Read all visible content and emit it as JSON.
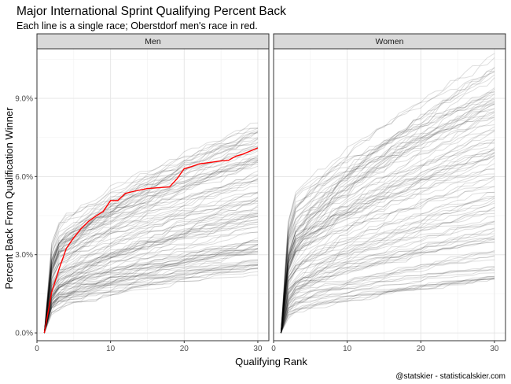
{
  "chart_data": {
    "type": "line",
    "title": "Major International Sprint Qualifying Percent Back",
    "subtitle": "Each line is a single race; Oberstdorf men's race in red.",
    "xlabel": "Qualifying Rank",
    "ylabel": "Percent Back From Qualification Winner",
    "caption": "@statskier - statisticalskier.com",
    "xlim": [
      0,
      31.5
    ],
    "ylim": [
      -0.3,
      10.9
    ],
    "x_ticks": [
      0,
      10,
      20,
      30
    ],
    "x_tick_labels": [
      "0",
      "10",
      "20",
      "30"
    ],
    "y_ticks": [
      0,
      3,
      6,
      9
    ],
    "y_tick_labels": [
      "0.0%",
      "3.0%",
      "6.0%",
      "9.0%"
    ],
    "grid": true,
    "panels": [
      {
        "label": "Men",
        "background_races": 110,
        "background_color": "#000000",
        "background_final_range": [
          2.2,
          8.1
        ],
        "highlight": {
          "name": "Oberstdorf men's race",
          "color": "#ff0000",
          "x": [
            1,
            2,
            3,
            4,
            5,
            6,
            7,
            8,
            9,
            10,
            11,
            12,
            13,
            14,
            15,
            16,
            17,
            18,
            19,
            20,
            21,
            22,
            23,
            24,
            25,
            26,
            27,
            28,
            29,
            30
          ],
          "y": [
            0,
            1.55,
            2.45,
            3.25,
            3.65,
            4.0,
            4.28,
            4.48,
            4.66,
            5.08,
            5.08,
            5.35,
            5.42,
            5.48,
            5.54,
            5.56,
            5.58,
            5.6,
            5.9,
            6.3,
            6.38,
            6.48,
            6.52,
            6.56,
            6.6,
            6.62,
            6.78,
            6.86,
            6.98,
            7.1
          ]
        }
      },
      {
        "label": "Women",
        "background_races": 110,
        "background_color": "#000000",
        "background_final_range": [
          2.0,
          10.7
        ]
      }
    ]
  }
}
